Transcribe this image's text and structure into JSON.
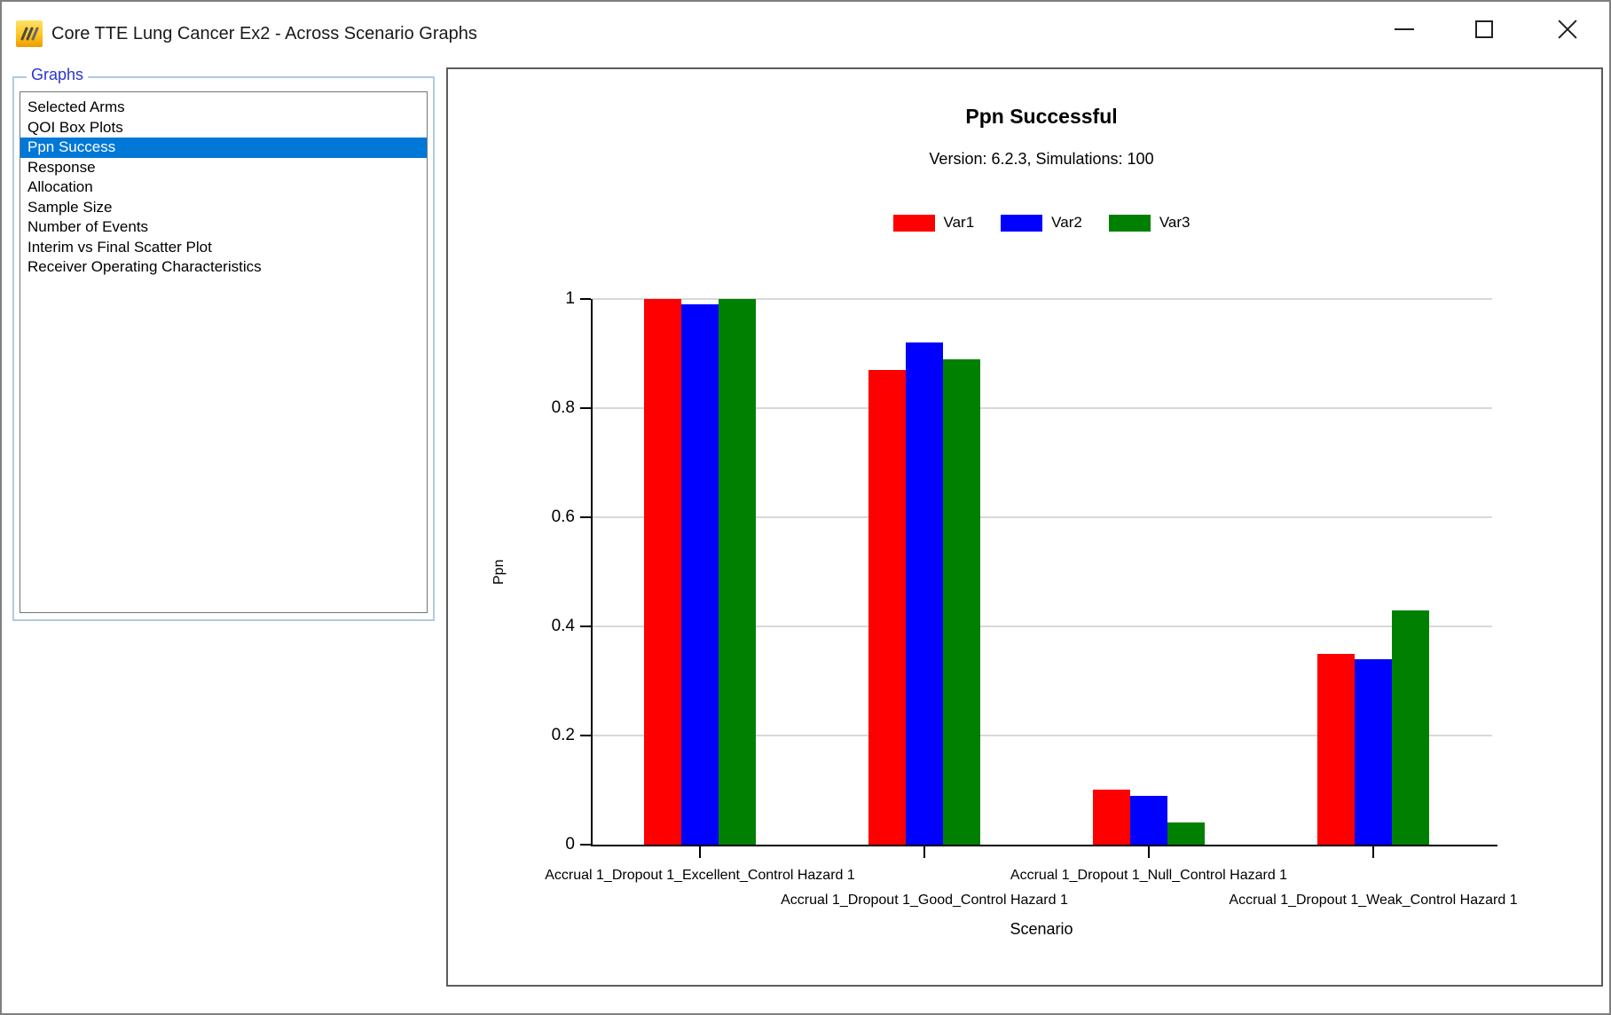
{
  "window": {
    "title": "Core TTE Lung Cancer Ex2 - Across Scenario Graphs"
  },
  "sidebar": {
    "group_label": "Graphs",
    "items": [
      {
        "label": "Selected Arms",
        "selected": false
      },
      {
        "label": "QOI Box Plots",
        "selected": false
      },
      {
        "label": "Ppn Success",
        "selected": true
      },
      {
        "label": "Response",
        "selected": false
      },
      {
        "label": "Allocation",
        "selected": false
      },
      {
        "label": "Sample Size",
        "selected": false
      },
      {
        "label": "Number of Events",
        "selected": false
      },
      {
        "label": "Interim vs Final Scatter Plot",
        "selected": false
      },
      {
        "label": "Receiver Operating Characteristics",
        "selected": false
      }
    ],
    "selection_color": "#0078d7"
  },
  "chart_data": {
    "type": "bar",
    "title": "Ppn Successful",
    "subtitle": "Version: 6.2.3, Simulations: 100",
    "xlabel": "Scenario",
    "ylabel": "Ppn",
    "categories": [
      "Accrual 1_Dropout 1_Excellent_Control Hazard 1",
      "Accrual 1_Dropout 1_Good_Control Hazard 1",
      "Accrual 1_Dropout 1_Null_Control Hazard 1",
      "Accrual 1_Dropout 1_Weak_Control Hazard 1"
    ],
    "series": [
      {
        "name": "Var1",
        "color": "#ff0000",
        "values": [
          1.0,
          0.87,
          0.1,
          0.35
        ]
      },
      {
        "name": "Var2",
        "color": "#0000ff",
        "values": [
          0.99,
          0.92,
          0.09,
          0.34
        ]
      },
      {
        "name": "Var3",
        "color": "#008000",
        "values": [
          1.0,
          0.89,
          0.04,
          0.43
        ]
      }
    ],
    "ylim": [
      0,
      1
    ],
    "yticks": [
      0,
      0.2,
      0.4,
      0.6,
      0.8,
      1
    ],
    "grid": true,
    "gridline_color": "#d9d9d9",
    "legend_position": "top"
  }
}
